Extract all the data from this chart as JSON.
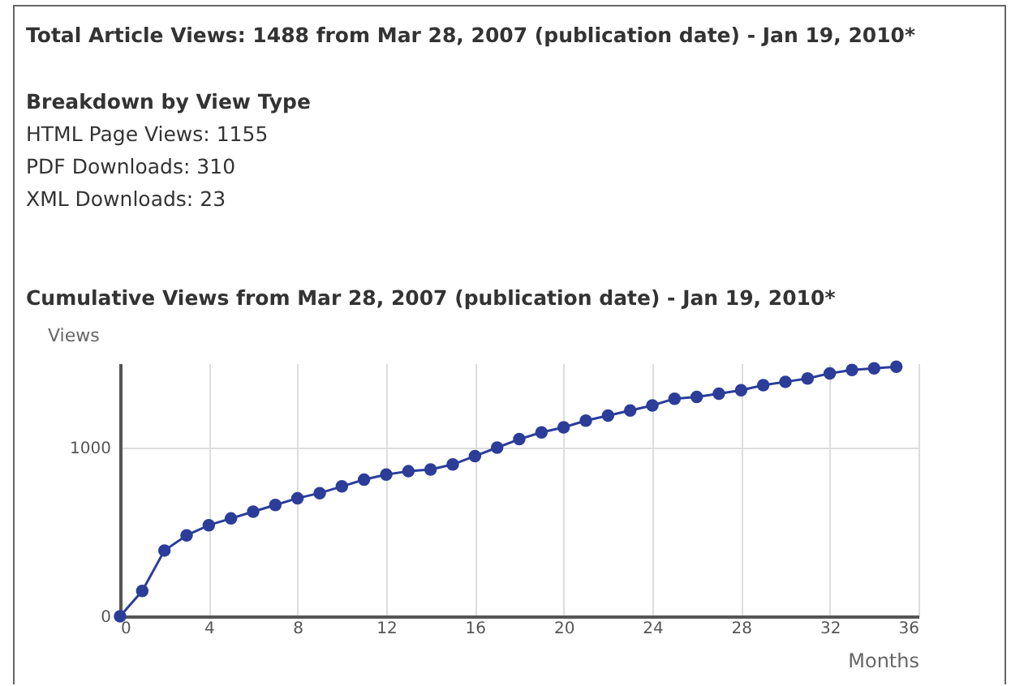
{
  "chart_data": {
    "type": "line",
    "title": "Cumulative Views from Mar 28, 2007 (publication date) - Jan 19, 2010*",
    "annotations": [
      "Total Article Views: 1488 from Mar 28, 2007 (publication date) - Jan 19, 2010*",
      "Breakdown by View Type",
      "HTML Page Views: 1155",
      "PDF Downloads: 310",
      "XML Downloads: 23"
    ],
    "xlabel": "Months",
    "ylabel": "Views",
    "x": [
      0,
      1,
      2,
      3,
      4,
      5,
      6,
      7,
      8,
      9,
      10,
      11,
      12,
      13,
      14,
      15,
      16,
      17,
      18,
      19,
      20,
      21,
      22,
      23,
      24,
      25,
      26,
      27,
      28,
      29,
      30,
      31,
      32,
      33,
      34,
      35
    ],
    "series": [
      {
        "color": "#2b3d99",
        "values": [
          0,
          150,
          390,
          480,
          540,
          580,
          620,
          660,
          700,
          730,
          770,
          810,
          840,
          860,
          870,
          900,
          950,
          1000,
          1050,
          1090,
          1120,
          1160,
          1190,
          1220,
          1250,
          1290,
          1300,
          1320,
          1340,
          1370,
          1390,
          1410,
          1440,
          1460,
          1470,
          1480
        ]
      }
    ],
    "xlim": [
      0,
      36
    ],
    "xticks": [
      0,
      4,
      8,
      12,
      16,
      20,
      24,
      28,
      32,
      36
    ],
    "ylim": [
      0,
      1500
    ],
    "yticks": [
      0,
      1000
    ],
    "grid": true,
    "marker": "circle",
    "legend": false
  }
}
